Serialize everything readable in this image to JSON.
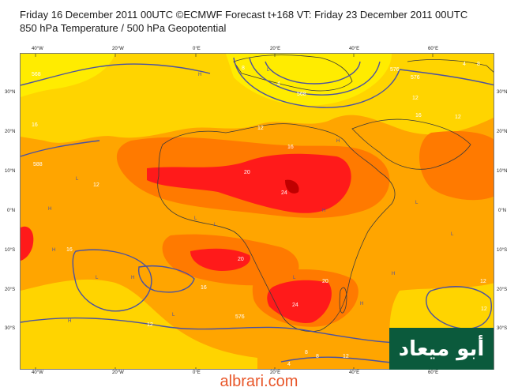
{
  "header": {
    "title_line1": "Friday 16 December 2011 00UTC ©ECMWF Forecast t+168 VT: Friday 23 December 2011 00UTC",
    "title_line2": "850 hPa Temperature / 500 hPa Geopotential"
  },
  "axes": {
    "top": [
      "40°W",
      "20°W",
      "0°E",
      "20°E",
      "40°E",
      "60°E"
    ],
    "bottom": [
      "40°W",
      "20°W",
      "0°E",
      "20°E",
      "40°E",
      "60°E"
    ],
    "left": [
      "30°N",
      "20°N",
      "10°N",
      "0°N",
      "10°S",
      "20°S",
      "30°S"
    ],
    "right": [
      "30°N",
      "20°N",
      "10°N",
      "0°N",
      "10°S",
      "20°S",
      "30°S"
    ]
  },
  "map": {
    "contour_labels": [
      "568",
      "8",
      "12",
      "16",
      "20",
      "24",
      "16",
      "20",
      "12",
      "16",
      "12",
      "20",
      "24",
      "588",
      "576",
      "4",
      "8",
      "12",
      "576",
      "12",
      "16",
      "12",
      "4",
      "8",
      "12",
      "576",
      "568",
      "12",
      "16",
      "8",
      "4"
    ],
    "pressure_markers": [
      "H",
      "L",
      "H",
      "L",
      "H",
      "L",
      "H",
      "L",
      "H",
      "L",
      "H",
      "L",
      "H",
      "L",
      "H",
      "L",
      "H",
      "L"
    ],
    "colors": {
      "warm_yellow": "#ffd400",
      "yellow": "#ffec00",
      "orange": "#ffa500",
      "dark_orange": "#ff7a00",
      "red": "#ff1a1a",
      "dark_red": "#c00000",
      "contour": "#4b52a0",
      "coast": "#3a3a3a"
    }
  },
  "brand": {
    "arabic_name": "أبو ميعاد",
    "watermark": "albrari.com"
  }
}
